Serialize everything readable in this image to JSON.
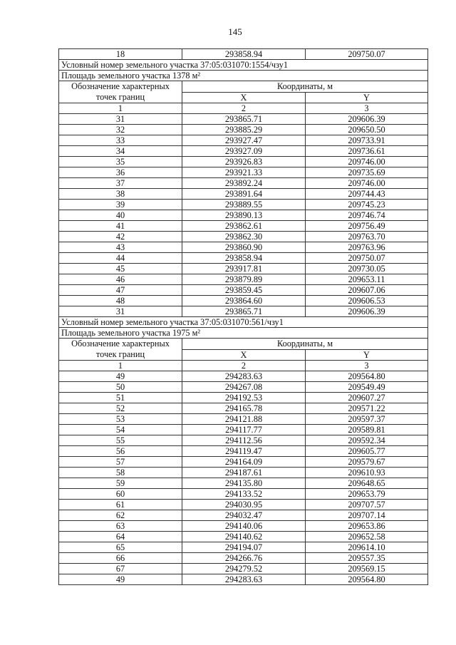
{
  "page_number": "145",
  "leading_row": [
    "18",
    "293858.94",
    "209750.07"
  ],
  "header": {
    "point_label_line1": "Обозначение характерных",
    "point_label_line2": "точек границ",
    "coords_label": "Координаты, м",
    "x_label": "X",
    "y_label": "Y",
    "col_numbers": [
      "1",
      "2",
      "3"
    ]
  },
  "parcels": [
    {
      "number_text": "Условный номер земельного участка  37:05:031070:1554/чзу1",
      "area_text": "Площадь земельного участка  1378 м²",
      "rows": [
        [
          "31",
          "293865.71",
          "209606.39"
        ],
        [
          "32",
          "293885.29",
          "209650.50"
        ],
        [
          "33",
          "293927.47",
          "209733.91"
        ],
        [
          "34",
          "293927.09",
          "209736.61"
        ],
        [
          "35",
          "293926.83",
          "209746.00"
        ],
        [
          "36",
          "293921.33",
          "209735.69"
        ],
        [
          "37",
          "293892.24",
          "209746.00"
        ],
        [
          "38",
          "293891.64",
          "209744.43"
        ],
        [
          "39",
          "293889.55",
          "209745.23"
        ],
        [
          "40",
          "293890.13",
          "209746.74"
        ],
        [
          "41",
          "293862.61",
          "209756.49"
        ],
        [
          "42",
          "293862.30",
          "209763.70"
        ],
        [
          "43",
          "293860.90",
          "209763.96"
        ],
        [
          "44",
          "293858.94",
          "209750.07"
        ],
        [
          "45",
          "293917.81",
          "209730.05"
        ],
        [
          "46",
          "293879.89",
          "209653.11"
        ],
        [
          "47",
          "293859.45",
          "209607.06"
        ],
        [
          "48",
          "293864.60",
          "209606.53"
        ],
        [
          "31",
          "293865.71",
          "209606.39"
        ]
      ]
    },
    {
      "number_text": "Условный номер земельного участка  37:05:031070:561/чзу1",
      "area_text": "Площадь земельного участка  1975 м²",
      "rows": [
        [
          "49",
          "294283.63",
          "209564.80"
        ],
        [
          "50",
          "294267.08",
          "209549.49"
        ],
        [
          "51",
          "294192.53",
          "209607.27"
        ],
        [
          "52",
          "294165.78",
          "209571.22"
        ],
        [
          "53",
          "294121.88",
          "209597.37"
        ],
        [
          "54",
          "294117.77",
          "209589.81"
        ],
        [
          "55",
          "294112.56",
          "209592.34"
        ],
        [
          "56",
          "294119.47",
          "209605.77"
        ],
        [
          "57",
          "294164.09",
          "209579.67"
        ],
        [
          "58",
          "294187.61",
          "209610.93"
        ],
        [
          "59",
          "294135.80",
          "209648.65"
        ],
        [
          "60",
          "294133.52",
          "209653.79"
        ],
        [
          "61",
          "294030.95",
          "209707.57"
        ],
        [
          "62",
          "294032.47",
          "209707.14"
        ],
        [
          "63",
          "294140.06",
          "209653.86"
        ],
        [
          "64",
          "294140.62",
          "209652.58"
        ],
        [
          "65",
          "294194.07",
          "209614.10"
        ],
        [
          "66",
          "294266.76",
          "209557.35"
        ],
        [
          "67",
          "294279.52",
          "209569.15"
        ],
        [
          "49",
          "294283.63",
          "209564.80"
        ]
      ]
    }
  ]
}
